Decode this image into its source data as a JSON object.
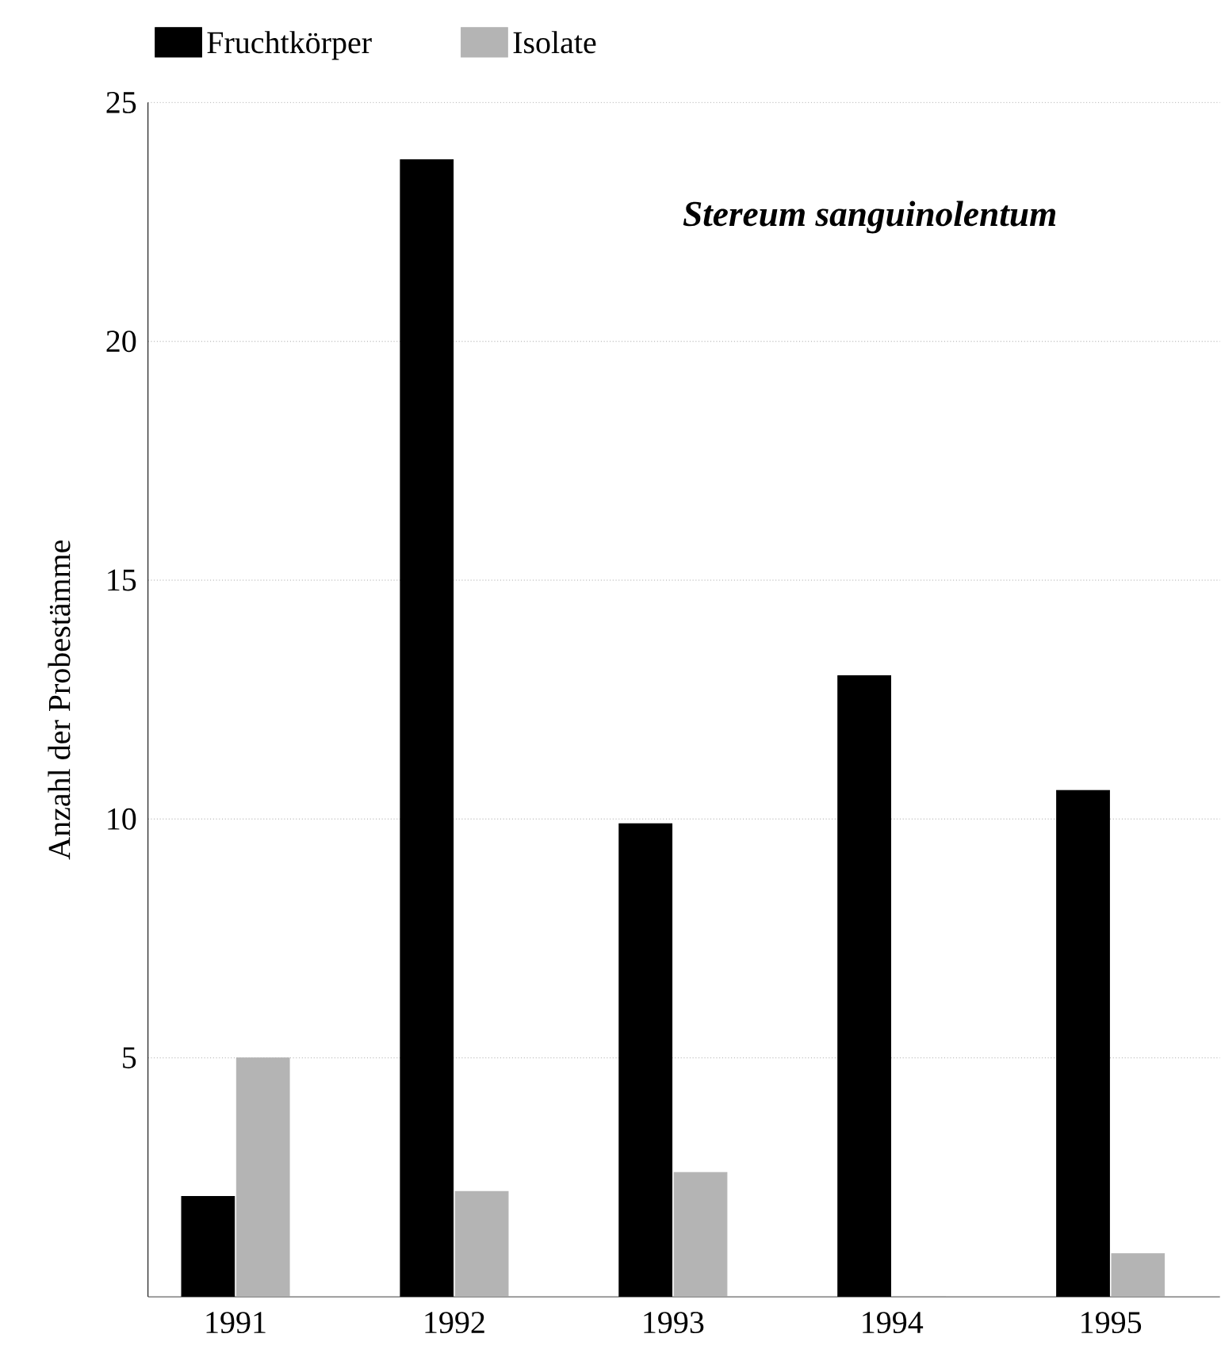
{
  "chart_data": {
    "type": "bar",
    "title": "Stereum sanguinolentum",
    "ylabel": "Anzahl der Probestämme",
    "categories": [
      "1991",
      "1992",
      "1993",
      "1994",
      "1995"
    ],
    "series": [
      {
        "name": "Fruchtkörper",
        "color": "#000000",
        "values": [
          2.1,
          23.8,
          9.9,
          13.0,
          10.6
        ]
      },
      {
        "name": "Isolate",
        "color": "#b4b4b4",
        "values": [
          5.0,
          2.2,
          2.6,
          0,
          0.9
        ]
      }
    ],
    "ylim": [
      0,
      25
    ],
    "yticks": [
      5,
      10,
      15,
      20,
      25
    ],
    "grid": "y",
    "legend": "top left"
  }
}
